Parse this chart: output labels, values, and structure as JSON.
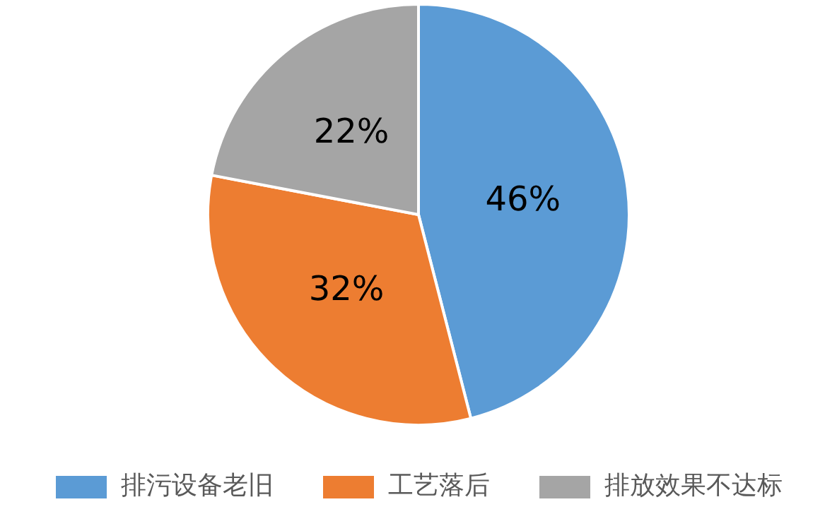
{
  "chart_data": {
    "type": "pie",
    "categories": [
      "排污设备老旧",
      "工艺落后",
      "排放效果不达标"
    ],
    "values": [
      46,
      32,
      22
    ],
    "colors": [
      "#5b9bd5",
      "#ed7d31",
      "#a5a5a5"
    ],
    "value_labels": [
      "46%",
      "32%",
      "22%"
    ],
    "legend": "bottom"
  }
}
